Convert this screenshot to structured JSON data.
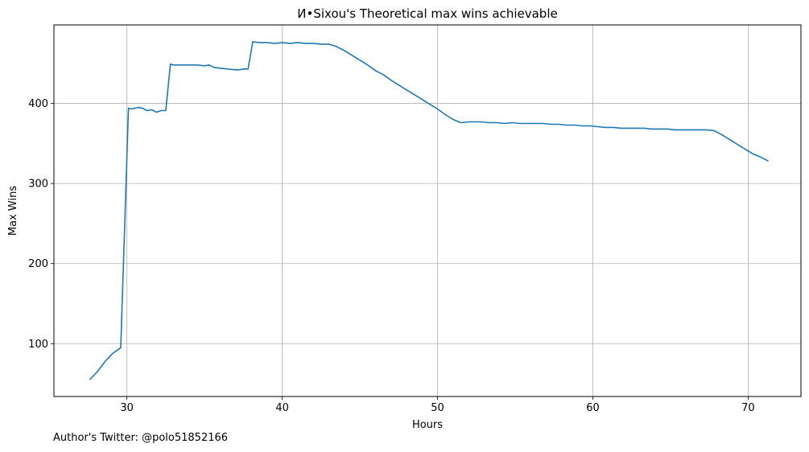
{
  "chart_data": {
    "type": "line",
    "title": "И•Sixou's Theoretical max wins achievable",
    "xlabel": "Hours",
    "ylabel": "Max Wins",
    "xlim": [
      25.3,
      73.4
    ],
    "ylim": [
      34,
      498
    ],
    "xticks": [
      30,
      40,
      50,
      60,
      70
    ],
    "yticks": [
      100,
      200,
      300,
      400
    ],
    "grid": true,
    "line_color": "#1f77b4",
    "series": [
      {
        "x": [
          27.6,
          28.1,
          28.6,
          29.1,
          29.6,
          30.1,
          30.3,
          30.7,
          31.0,
          31.3,
          31.6,
          31.9,
          32.2,
          32.5,
          32.8,
          33.0,
          33.5,
          34.0,
          34.5,
          35.0,
          35.3,
          35.6,
          36.0,
          36.5,
          37.0,
          37.2,
          37.5,
          37.8,
          38.1,
          38.5,
          39.0,
          39.5,
          40.0,
          40.5,
          41.0,
          41.5,
          42.0,
          42.5,
          43.0,
          43.5,
          44.0,
          44.5,
          45.0,
          45.5,
          46.0,
          46.5,
          47.0,
          47.5,
          48.0,
          48.5,
          49.0,
          49.5,
          50.0,
          50.5,
          51.0,
          51.5,
          52.0,
          52.3,
          52.8,
          53.3,
          53.8,
          54.3,
          54.8,
          55.3,
          55.8,
          56.3,
          56.8,
          57.3,
          57.8,
          58.3,
          58.8,
          59.3,
          59.8,
          60.3,
          60.8,
          61.3,
          61.8,
          62.3,
          62.8,
          63.3,
          63.8,
          64.3,
          64.8,
          65.3,
          65.8,
          66.3,
          66.8,
          67.3,
          67.8,
          68.3,
          68.8,
          69.3,
          69.8,
          70.3,
          70.8,
          71.3
        ],
        "y": [
          55,
          65,
          78,
          88,
          95,
          394,
          393,
          395,
          394,
          391,
          392,
          389,
          391,
          391,
          449,
          448,
          448,
          448,
          448,
          447,
          448,
          445,
          444,
          443,
          442,
          442,
          443,
          443,
          477,
          476,
          476,
          475,
          476,
          475,
          476,
          475,
          475,
          474,
          474,
          471,
          466,
          460,
          454,
          448,
          441,
          436,
          429,
          423,
          417,
          411,
          405,
          399,
          393,
          386,
          380,
          376,
          377,
          377,
          377,
          376,
          376,
          375,
          376,
          375,
          375,
          375,
          375,
          374,
          374,
          373,
          373,
          372,
          372,
          371,
          370,
          370,
          369,
          369,
          369,
          369,
          368,
          368,
          368,
          367,
          367,
          367,
          367,
          367,
          366,
          361,
          355,
          349,
          343,
          337,
          333,
          328
        ]
      }
    ]
  },
  "footer": {
    "credit": "Author's Twitter: @polo51852166"
  }
}
